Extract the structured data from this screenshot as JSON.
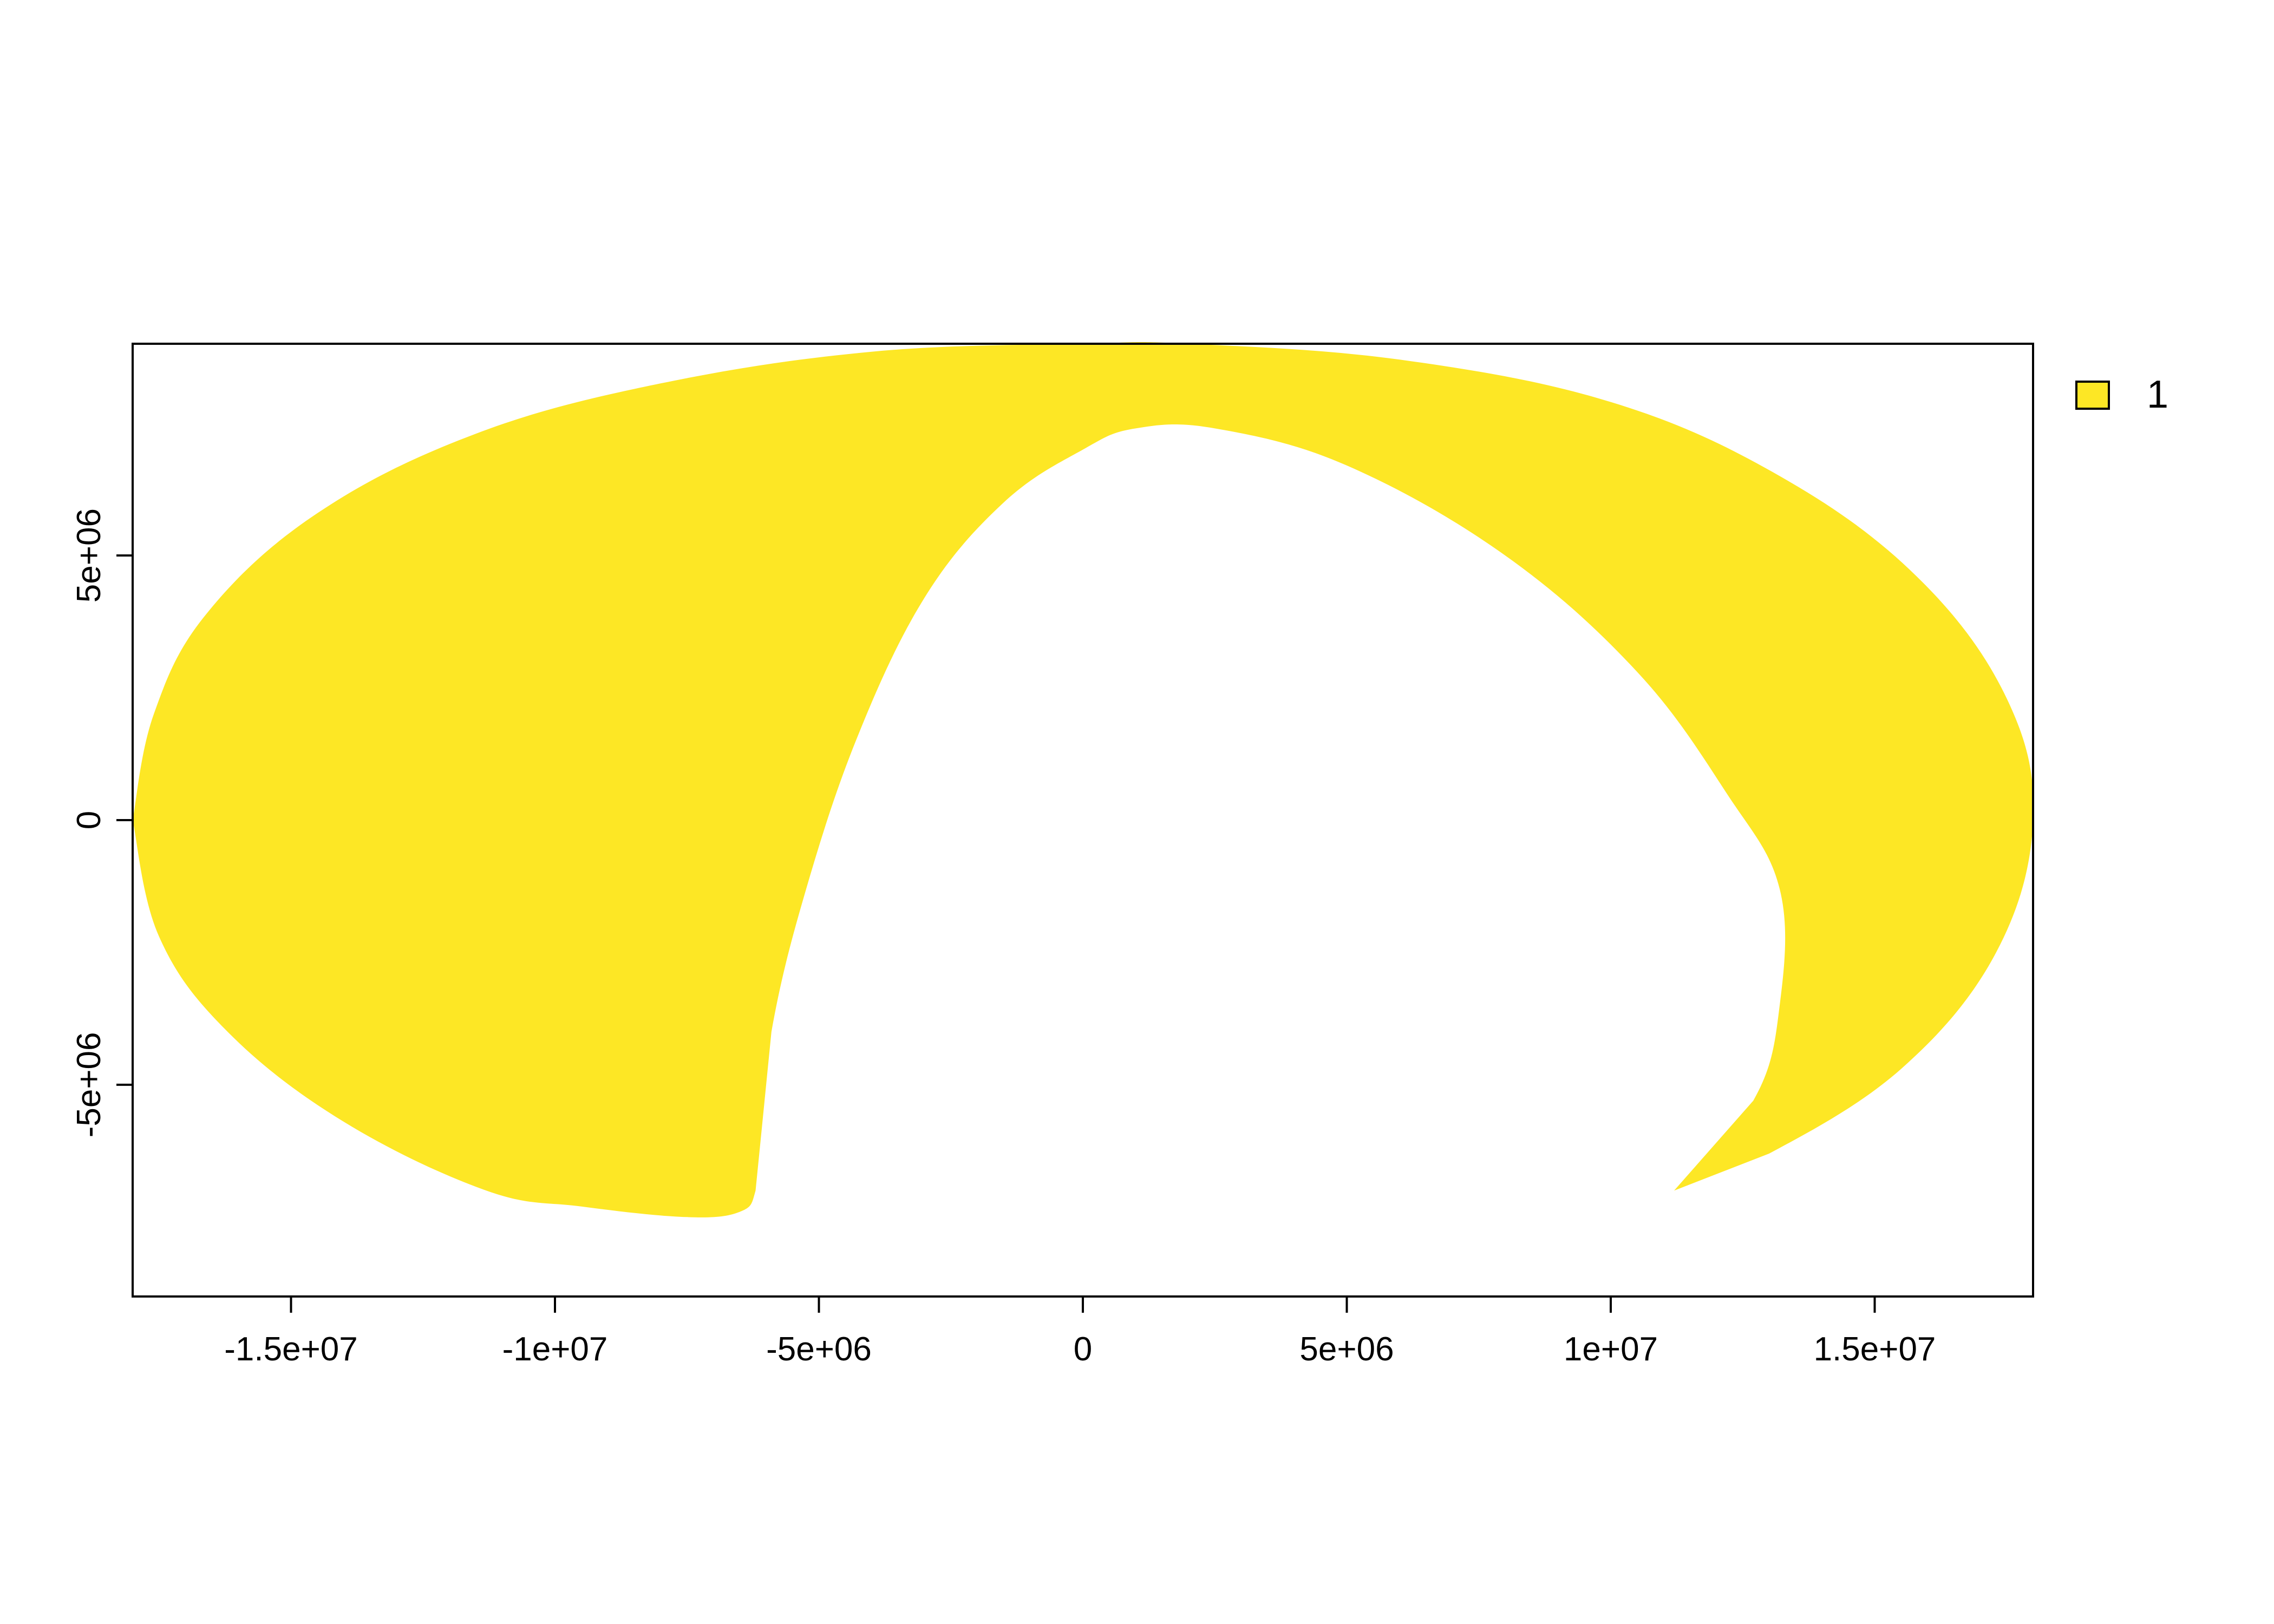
{
  "chart_data": {
    "type": "map",
    "projection_units": "metres",
    "xlim": [
      -18000000,
      18000000
    ],
    "ylim": [
      -9000000,
      9000000
    ],
    "x_ticks": [
      {
        "value": -15000000,
        "label": "-1.5e+07"
      },
      {
        "value": -10000000,
        "label": "-1e+07"
      },
      {
        "value": -5000000,
        "label": "-5e+06"
      },
      {
        "value": 0,
        "label": "0"
      },
      {
        "value": 5000000,
        "label": "5e+06"
      },
      {
        "value": 10000000,
        "label": "1e+07"
      },
      {
        "value": 15000000,
        "label": "1.5e+07"
      }
    ],
    "y_ticks": [
      {
        "value": -5000000,
        "label": "-5e+06"
      },
      {
        "value": 0,
        "label": "0"
      },
      {
        "value": 5000000,
        "label": "5e+06"
      }
    ],
    "fill_color": "#FDE725",
    "grid": false,
    "legend": {
      "position": "top-right",
      "entries": [
        {
          "label": "1",
          "color": "#FDE725"
        }
      ]
    },
    "region_outer": [
      [
        -18000000,
        0
      ],
      [
        -17500000,
        -2200000
      ],
      [
        -16200000,
        -4000000
      ],
      [
        -14000000,
        -5700000
      ],
      [
        -11300000,
        -7000000
      ],
      [
        -9500000,
        -7300000
      ],
      [
        -7500000,
        -7500000
      ],
      [
        -6500000,
        -7400000
      ],
      [
        -6200000,
        -7000000
      ],
      [
        -6100000,
        -6000000
      ],
      [
        -5900000,
        -4000000
      ],
      [
        -5300000,
        -1500000
      ],
      [
        -4300000,
        1500000
      ],
      [
        -3000000,
        4200000
      ],
      [
        -1500000,
        6000000
      ],
      [
        0,
        7000000
      ],
      [
        1000000,
        7400000
      ],
      [
        2500000,
        7400000
      ],
      [
        5000000,
        6700000
      ],
      [
        8000000,
        5000000
      ],
      [
        10500000,
        2800000
      ],
      [
        12200000,
        500000
      ],
      [
        13200000,
        -1300000
      ],
      [
        13200000,
        -3500000
      ],
      [
        12700000,
        -5300000
      ],
      [
        11200000,
        -7000000
      ],
      [
        13000000,
        -6300000
      ],
      [
        15500000,
        -4700000
      ],
      [
        17300000,
        -2500000
      ],
      [
        18000000,
        0
      ],
      [
        17500000,
        2300000
      ],
      [
        15800000,
        4600000
      ],
      [
        13200000,
        6500000
      ],
      [
        10000000,
        7900000
      ],
      [
        6000000,
        8700000
      ],
      [
        2000000,
        9000000
      ],
      [
        0,
        9000000
      ],
      [
        -4000000,
        8850000
      ],
      [
        -8000000,
        8250000
      ],
      [
        -11500000,
        7300000
      ],
      [
        -14500000,
        5800000
      ],
      [
        -16600000,
        3900000
      ],
      [
        -17600000,
        2000000
      ],
      [
        -18000000,
        0
      ]
    ]
  }
}
